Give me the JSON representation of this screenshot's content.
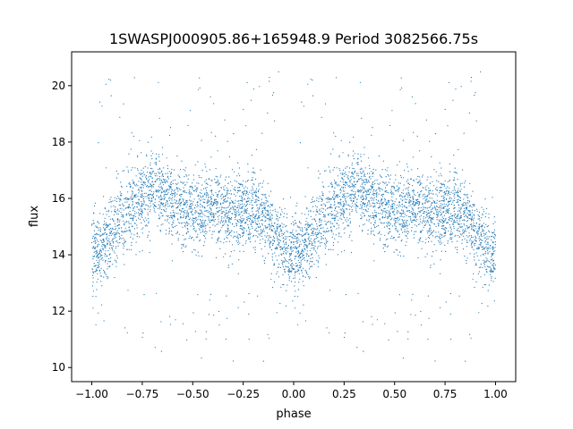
{
  "chart_data": {
    "type": "scatter",
    "title": "1SWASPJ000905.86+165948.9 Period 3082566.75s",
    "xlabel": "phase",
    "ylabel": "flux",
    "xlim": [
      -1.1,
      1.1
    ],
    "ylim": [
      9.5,
      21.2
    ],
    "xticks": [
      -1.0,
      -0.75,
      -0.5,
      -0.25,
      0.0,
      0.25,
      0.5,
      0.75,
      1.0
    ],
    "xtick_labels": [
      "−1.00",
      "−0.75",
      "−0.50",
      "−0.25",
      "0.00",
      "0.25",
      "0.50",
      "0.75",
      "1.00"
    ],
    "yticks": [
      10,
      12,
      14,
      16,
      18,
      20
    ],
    "ytick_labels": [
      "10",
      "12",
      "14",
      "16",
      "18",
      "20"
    ],
    "grid": false,
    "marker_color": "#1f77b4",
    "profile": {
      "phase": [
        0.0,
        0.05,
        0.1,
        0.15,
        0.2,
        0.25,
        0.3,
        0.35,
        0.4,
        0.45,
        0.5,
        0.55,
        0.6,
        0.65,
        0.7,
        0.75,
        0.8,
        0.85,
        0.9,
        0.95,
        1.0
      ],
      "flux": [
        14.1,
        14.3,
        14.8,
        15.3,
        15.7,
        16.1,
        16.3,
        16.1,
        15.9,
        15.7,
        15.5,
        15.6,
        15.7,
        15.6,
        15.5,
        15.5,
        15.6,
        15.4,
        14.9,
        14.3,
        14.0
      ]
    },
    "scatter_sigma": 0.75,
    "outlier_ranges": [
      [
        10.0,
        12.8
      ],
      [
        17.8,
        20.6
      ]
    ]
  }
}
